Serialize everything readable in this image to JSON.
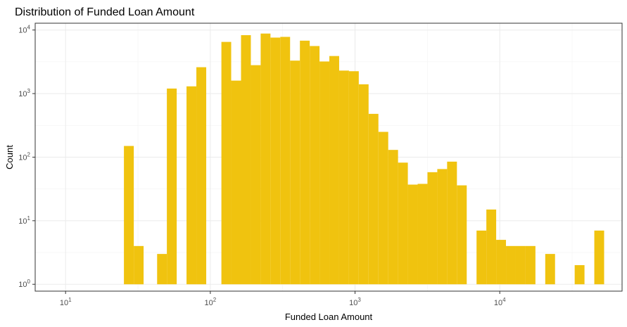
{
  "chart_data": {
    "type": "bar",
    "title": "Distribution of Funded Loan Amount",
    "xlabel": "Funded Loan Amount",
    "ylabel": "Count",
    "x_scale": "log10",
    "y_scale": "log10",
    "xlim": [
      6.166,
      70000
    ],
    "ylim": [
      0.78,
      12800
    ],
    "x_ticks": [
      {
        "value": 10,
        "base": "10",
        "exp": "1"
      },
      {
        "value": 100,
        "base": "10",
        "exp": "2"
      },
      {
        "value": 1000,
        "base": "10",
        "exp": "3"
      },
      {
        "value": 10000,
        "base": "10",
        "exp": "4"
      }
    ],
    "y_ticks": [
      {
        "value": 1,
        "base": "10",
        "exp": "0"
      },
      {
        "value": 10,
        "base": "10",
        "exp": "1"
      },
      {
        "value": 100,
        "base": "10",
        "exp": "2"
      },
      {
        "value": 1000,
        "base": "10",
        "exp": "3"
      },
      {
        "value": 10000,
        "base": "10",
        "exp": "4"
      }
    ],
    "bar_color": "#F0C30F",
    "grid": true,
    "bins": [
      {
        "start": 25.3,
        "end": 29.6,
        "count": 150
      },
      {
        "start": 29.6,
        "end": 34.6,
        "count": 4
      },
      {
        "start": 42.9,
        "end": 50.1,
        "count": 3
      },
      {
        "start": 50.1,
        "end": 58.6,
        "count": 1200
      },
      {
        "start": 68.5,
        "end": 80.1,
        "count": 1300
      },
      {
        "start": 80.1,
        "end": 93.7,
        "count": 2600
      },
      {
        "start": 119.3,
        "end": 139.4,
        "count": 6500
      },
      {
        "start": 139.4,
        "end": 163.0,
        "count": 1600
      },
      {
        "start": 163.0,
        "end": 190.6,
        "count": 8300
      },
      {
        "start": 190.6,
        "end": 222.8,
        "count": 2800
      },
      {
        "start": 222.8,
        "end": 260.4,
        "count": 8800
      },
      {
        "start": 260.4,
        "end": 304.4,
        "count": 7600
      },
      {
        "start": 304.4,
        "end": 355.8,
        "count": 7800
      },
      {
        "start": 355.8,
        "end": 416.0,
        "count": 3300
      },
      {
        "start": 416.0,
        "end": 486.3,
        "count": 6800
      },
      {
        "start": 486.3,
        "end": 568.4,
        "count": 5600
      },
      {
        "start": 568.4,
        "end": 664.5,
        "count": 3200
      },
      {
        "start": 664.5,
        "end": 776.7,
        "count": 3900
      },
      {
        "start": 776.7,
        "end": 907.9,
        "count": 2300
      },
      {
        "start": 907.9,
        "end": 1061.4,
        "count": 2250
      },
      {
        "start": 1061.4,
        "end": 1240.7,
        "count": 1400
      },
      {
        "start": 1240.7,
        "end": 1450.4,
        "count": 480
      },
      {
        "start": 1450.4,
        "end": 1695.5,
        "count": 250
      },
      {
        "start": 1695.5,
        "end": 1982.0,
        "count": 130
      },
      {
        "start": 1982.0,
        "end": 2316.9,
        "count": 82
      },
      {
        "start": 2316.9,
        "end": 2708.4,
        "count": 37
      },
      {
        "start": 2708.4,
        "end": 3166.1,
        "count": 38
      },
      {
        "start": 3166.1,
        "end": 3701.1,
        "count": 58
      },
      {
        "start": 3701.1,
        "end": 4326.5,
        "count": 65
      },
      {
        "start": 4326.5,
        "end": 5057.6,
        "count": 85
      },
      {
        "start": 5057.6,
        "end": 5912.2,
        "count": 36
      },
      {
        "start": 6911.2,
        "end": 8079.0,
        "count": 7
      },
      {
        "start": 8079.0,
        "end": 9444.2,
        "count": 15
      },
      {
        "start": 9444.2,
        "end": 11040.1,
        "count": 5
      },
      {
        "start": 11040.1,
        "end": 12905.6,
        "count": 4
      },
      {
        "start": 12905.6,
        "end": 15086.4,
        "count": 4
      },
      {
        "start": 15086.4,
        "end": 17635.6,
        "count": 4
      },
      {
        "start": 20615.6,
        "end": 24099.1,
        "count": 3
      },
      {
        "start": 32930.9,
        "end": 38495.4,
        "count": 2
      },
      {
        "start": 45000.0,
        "end": 52603.9,
        "count": 7
      }
    ]
  }
}
